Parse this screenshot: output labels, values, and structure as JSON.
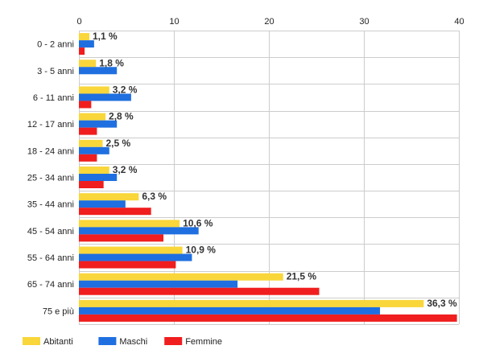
{
  "chart_data": {
    "type": "bar",
    "orientation": "horizontal",
    "categories": [
      "0 - 2 anni",
      "3 - 5 anni",
      "6 - 11 anni",
      "12 - 17 anni",
      "18 - 24 anni",
      "25 - 34 anni",
      "35 - 44 anni",
      "45 - 54 anni",
      "55 - 64 anni",
      "65 - 74 anni",
      "75 e più"
    ],
    "series": [
      {
        "name": "Abitanti",
        "color": "#f9d63a",
        "values": [
          1.1,
          1.8,
          3.2,
          2.8,
          2.5,
          3.2,
          6.3,
          10.6,
          10.9,
          21.5,
          36.3
        ]
      },
      {
        "name": "Maschi",
        "color": "#1f6fe0",
        "values": [
          1.6,
          4.0,
          5.5,
          4.0,
          3.2,
          4.0,
          4.9,
          12.6,
          11.9,
          16.7,
          31.7
        ]
      },
      {
        "name": "Femmine",
        "color": "#f01e1e",
        "values": [
          0.6,
          0.0,
          1.3,
          1.9,
          1.9,
          2.6,
          7.6,
          8.9,
          10.2,
          25.3,
          39.8
        ]
      }
    ],
    "data_labels": [
      "1,1 %",
      "1,8 %",
      "3,2 %",
      "2,8 %",
      "2,5 %",
      "3,2 %",
      "6,3 %",
      "10,6 %",
      "10,9 %",
      "21,5 %",
      "36,3 %"
    ],
    "x_ticks": [
      "0",
      "10",
      "20",
      "30",
      "40"
    ],
    "xlim": [
      0,
      40
    ],
    "grid": true,
    "legend_position": "bottom-left"
  }
}
